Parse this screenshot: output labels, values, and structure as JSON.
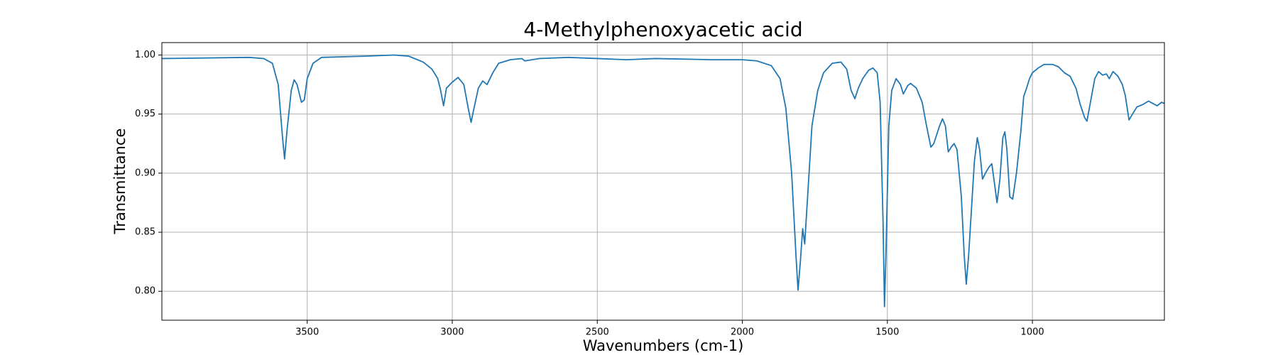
{
  "chart_data": {
    "type": "line",
    "title": "4-Methylphenoxyacetic acid",
    "x_label": "Wavenumbers (cm-1)",
    "y_label": "Transmittance",
    "color": "#1f77b4",
    "grid": true,
    "xlim": [
      4001,
      545
    ],
    "ylim": [
      0.7755,
      1.0105
    ],
    "xticks": [
      3500,
      3000,
      2500,
      2000,
      1500,
      1000
    ],
    "yticks": [
      {
        "value": 0.8,
        "label": "0.80"
      },
      {
        "value": 0.85,
        "label": "0.85"
      },
      {
        "value": 0.9,
        "label": "0.90"
      },
      {
        "value": 0.95,
        "label": "0.95"
      },
      {
        "value": 1.0,
        "label": "1.00"
      }
    ],
    "x": [
      4000,
      3700,
      3650,
      3620,
      3600,
      3585,
      3578,
      3570,
      3555,
      3545,
      3535,
      3520,
      3510,
      3500,
      3480,
      3450,
      3300,
      3200,
      3150,
      3100,
      3070,
      3050,
      3040,
      3030,
      3020,
      3000,
      2980,
      2960,
      2945,
      2935,
      2925,
      2910,
      2895,
      2880,
      2860,
      2840,
      2800,
      2760,
      2750,
      2700,
      2600,
      2500,
      2400,
      2300,
      2100,
      2000,
      1950,
      1900,
      1870,
      1850,
      1830,
      1815,
      1808,
      1800,
      1792,
      1785,
      1775,
      1760,
      1740,
      1720,
      1690,
      1660,
      1640,
      1625,
      1612,
      1600,
      1585,
      1565,
      1550,
      1535,
      1525,
      1515,
      1510,
      1505,
      1495,
      1485,
      1470,
      1455,
      1445,
      1430,
      1420,
      1400,
      1380,
      1365,
      1350,
      1340,
      1320,
      1310,
      1300,
      1290,
      1280,
      1270,
      1260,
      1245,
      1235,
      1228,
      1220,
      1210,
      1200,
      1190,
      1182,
      1172,
      1162,
      1150,
      1140,
      1130,
      1122,
      1112,
      1102,
      1095,
      1088,
      1078,
      1068,
      1055,
      1040,
      1030,
      1020,
      1010,
      1000,
      980,
      960,
      930,
      910,
      890,
      870,
      850,
      835,
      820,
      812,
      800,
      785,
      772,
      758,
      745,
      735,
      722,
      705,
      690,
      680,
      667,
      655,
      640,
      620,
      600,
      585,
      570,
      555,
      545
    ],
    "values": [
      0.997,
      0.998,
      0.997,
      0.993,
      0.975,
      0.93,
      0.912,
      0.935,
      0.97,
      0.979,
      0.975,
      0.96,
      0.962,
      0.98,
      0.993,
      0.998,
      0.999,
      1.0,
      0.999,
      0.994,
      0.988,
      0.98,
      0.97,
      0.957,
      0.972,
      0.977,
      0.981,
      0.975,
      0.955,
      0.943,
      0.955,
      0.972,
      0.978,
      0.975,
      0.985,
      0.993,
      0.996,
      0.997,
      0.995,
      0.997,
      0.998,
      0.997,
      0.996,
      0.997,
      0.996,
      0.996,
      0.995,
      0.991,
      0.98,
      0.955,
      0.9,
      0.83,
      0.801,
      0.825,
      0.853,
      0.84,
      0.88,
      0.94,
      0.97,
      0.985,
      0.993,
      0.994,
      0.988,
      0.97,
      0.963,
      0.972,
      0.98,
      0.987,
      0.989,
      0.985,
      0.96,
      0.86,
      0.787,
      0.83,
      0.94,
      0.97,
      0.98,
      0.975,
      0.967,
      0.974,
      0.976,
      0.972,
      0.96,
      0.94,
      0.922,
      0.925,
      0.94,
      0.946,
      0.94,
      0.918,
      0.922,
      0.925,
      0.92,
      0.88,
      0.83,
      0.806,
      0.83,
      0.87,
      0.91,
      0.93,
      0.92,
      0.895,
      0.9,
      0.905,
      0.908,
      0.89,
      0.875,
      0.895,
      0.93,
      0.935,
      0.92,
      0.88,
      0.878,
      0.9,
      0.935,
      0.965,
      0.972,
      0.98,
      0.985,
      0.989,
      0.992,
      0.992,
      0.99,
      0.985,
      0.982,
      0.972,
      0.958,
      0.947,
      0.944,
      0.96,
      0.98,
      0.986,
      0.983,
      0.984,
      0.98,
      0.986,
      0.982,
      0.975,
      0.966,
      0.945,
      0.95,
      0.956,
      0.958,
      0.961,
      0.959,
      0.957,
      0.96,
      0.959
    ]
  }
}
